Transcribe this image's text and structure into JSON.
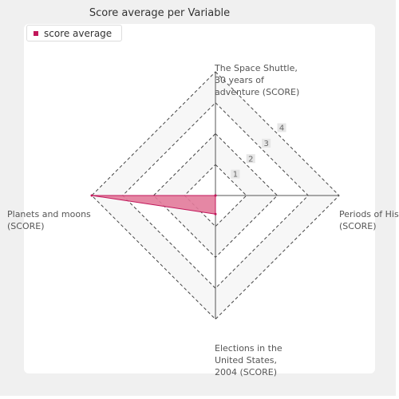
{
  "chart_data": {
    "type": "radar",
    "title": "Score average per Variable",
    "axes": [
      "The Space Shuttle, 30 years of adventure (SCORE)",
      "Periods of History (SCORE)",
      "Elections in the United States, 2004 (SCORE)",
      "Planets and moons (SCORE)"
    ],
    "axis_display": [
      "The Space Shuttle,\n30 years of\nadventure (SCORE)",
      "Periods of His\n(SCORE)",
      "Elections in the\nUnited States,\n2004 (SCORE)",
      "Planets and moons\n(SCORE)"
    ],
    "ticks": [
      "1",
      "2",
      "3",
      "4"
    ],
    "rmax": 4,
    "series": [
      {
        "name": "score average",
        "values": [
          0,
          0,
          0.6,
          4
        ]
      }
    ],
    "colors": {
      "series": "#c2185b",
      "fill": "#e27a9a"
    },
    "legend": "top-left",
    "grid": true
  }
}
